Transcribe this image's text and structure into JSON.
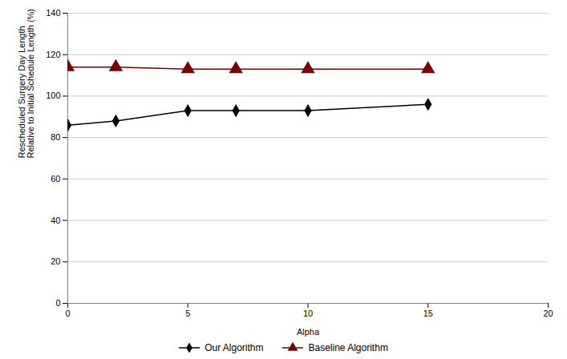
{
  "chart_data": {
    "type": "line",
    "xlabel": "Alpha",
    "ylabel": "Rescheduled Surgery Day Length\nRelative to Initial Schedule Length (%)",
    "x": [
      0,
      2,
      5,
      7,
      10,
      15
    ],
    "series": [
      {
        "name": "Our Algorithm",
        "color": "#000000",
        "marker": "diamond",
        "values": [
          86,
          88,
          93,
          93,
          93,
          96
        ]
      },
      {
        "name": "Baseline Algorithm",
        "color": "#7B0000",
        "marker": "triangle",
        "values": [
          114,
          114,
          113,
          113,
          113,
          113
        ]
      }
    ],
    "xlim": [
      0,
      20
    ],
    "ylim": [
      0,
      140
    ],
    "xticks": [
      0,
      5,
      10,
      15,
      20
    ],
    "yticks": [
      0,
      20,
      40,
      60,
      80,
      100,
      120,
      140
    ],
    "grid": "y",
    "legend": "bottom"
  }
}
